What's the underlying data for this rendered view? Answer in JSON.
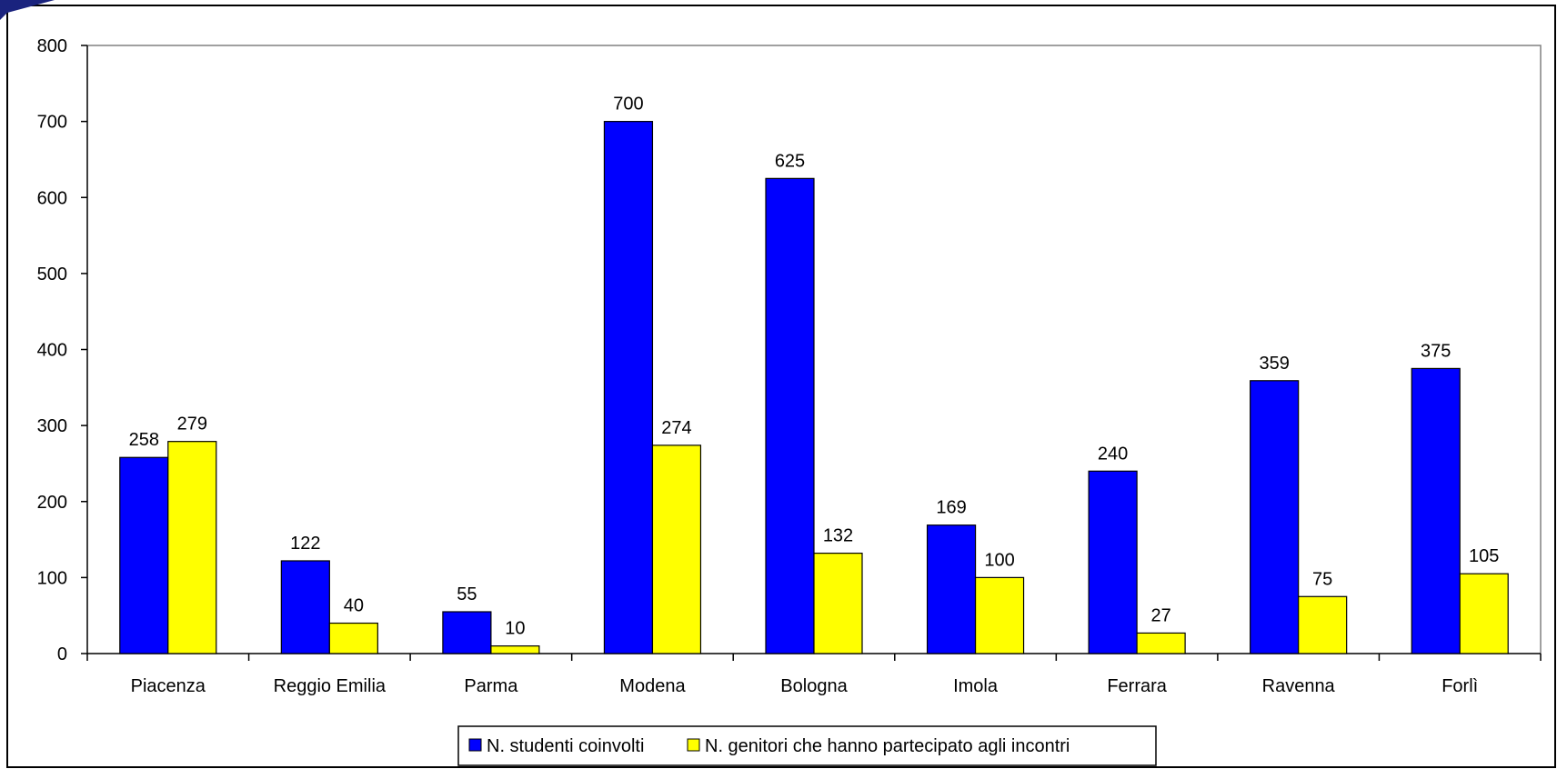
{
  "colors": {
    "series_1": "#0000ff",
    "series_2": "#ffff00",
    "frame": "#000000",
    "plot_border": "#808080",
    "corner_accent": "#1a237e"
  },
  "chart_data": {
    "type": "bar",
    "categories": [
      "Piacenza",
      "Reggio Emilia",
      "Parma",
      "Modena",
      "Bologna",
      "Imola",
      "Ferrara",
      "Ravenna",
      "Forlì"
    ],
    "series": [
      {
        "name": "N. studenti coinvolti",
        "values": [
          258,
          122,
          55,
          700,
          625,
          169,
          240,
          359,
          375
        ]
      },
      {
        "name": "N. genitori che hanno partecipato agli incontri",
        "values": [
          279,
          40,
          10,
          274,
          132,
          100,
          27,
          75,
          105
        ]
      }
    ],
    "ylim": [
      0,
      800
    ],
    "yticks": [
      0,
      100,
      200,
      300,
      400,
      500,
      600,
      700,
      800
    ],
    "grid": false,
    "legend_position": "bottom-center",
    "data_labels": true
  }
}
